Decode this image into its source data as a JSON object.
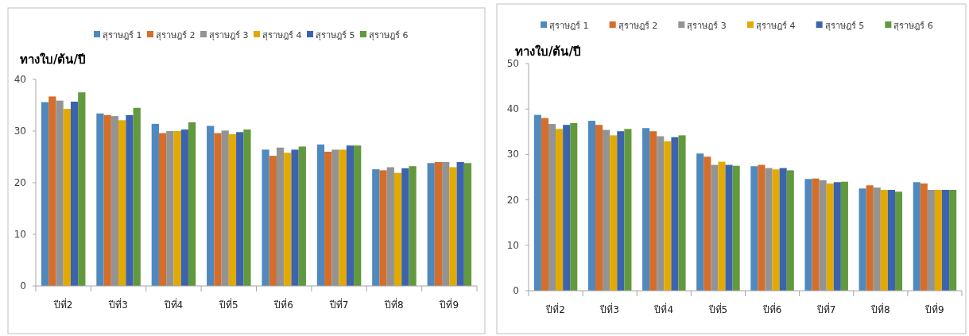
{
  "chart_data": [
    {
      "type": "bar",
      "ylabel": "ทางใบ/ต้น/ปี",
      "categories": [
        "ปีที่2",
        "ปีที่3",
        "ปีที่4",
        "ปีที่5",
        "ปีที่6",
        "ปีที่7",
        "ปีที่8",
        "ปีที่9"
      ],
      "ylim": [
        0,
        40
      ],
      "yticks": [
        0,
        10,
        20,
        30,
        40
      ],
      "legend": "top",
      "series": [
        {
          "name": "สุราษฎร์ 1",
          "color": "#4f89bd",
          "values": [
            35.6,
            33.4,
            31.4,
            31.0,
            26.4,
            27.4,
            22.6,
            23.8
          ]
        },
        {
          "name": "สุราษฎร์ 2",
          "color": "#d56d2b",
          "values": [
            36.7,
            33.1,
            29.6,
            29.6,
            25.2,
            26.0,
            22.4,
            24.0
          ]
        },
        {
          "name": "สุราษฎร์ 3",
          "color": "#939393",
          "values": [
            35.9,
            32.9,
            30.0,
            30.1,
            26.8,
            26.4,
            23.0,
            24.0
          ]
        },
        {
          "name": "สุราษฎร์ 4",
          "color": "#e2aa00",
          "values": [
            34.3,
            32.1,
            30.0,
            29.4,
            25.8,
            26.4,
            21.9,
            23.0
          ]
        },
        {
          "name": "สุราษฎร์ 5",
          "color": "#3c63ae",
          "values": [
            35.7,
            33.1,
            30.3,
            29.8,
            26.4,
            27.2,
            22.8,
            24.0
          ]
        },
        {
          "name": "สุราษฎร์ 6",
          "color": "#62993e",
          "values": [
            37.5,
            34.5,
            31.7,
            30.3,
            27.0,
            27.2,
            23.2,
            23.8
          ]
        }
      ]
    },
    {
      "type": "bar",
      "ylabel": "ทางใบ/ต้น/ปี",
      "categories": [
        "ปีที่2",
        "ปีที่3",
        "ปีที่4",
        "ปีที่5",
        "ปีที่6",
        "ปีที่7",
        "ปีที่8",
        "ปีที่9"
      ],
      "ylim": [
        0,
        50
      ],
      "yticks": [
        0,
        10,
        20,
        30,
        40,
        50
      ],
      "legend": "top",
      "series": [
        {
          "name": "สุราษฎร์ 1",
          "color": "#4f89bd",
          "values": [
            38.7,
            37.4,
            35.8,
            30.2,
            27.4,
            24.6,
            22.5,
            23.9
          ]
        },
        {
          "name": "สุราษฎร์ 2",
          "color": "#d56d2b",
          "values": [
            38.0,
            36.5,
            35.1,
            29.5,
            27.7,
            24.7,
            23.2,
            23.6
          ]
        },
        {
          "name": "สุราษฎร์ 3",
          "color": "#939393",
          "values": [
            36.7,
            35.4,
            34.0,
            27.7,
            27.0,
            24.3,
            22.7,
            22.2
          ]
        },
        {
          "name": "สุราษฎร์ 4",
          "color": "#e2aa00",
          "values": [
            35.6,
            34.2,
            32.9,
            28.4,
            26.7,
            23.6,
            22.2,
            22.2
          ]
        },
        {
          "name": "สุราษฎร์ 5",
          "color": "#3c63ae",
          "values": [
            36.5,
            35.1,
            33.8,
            27.7,
            27.0,
            23.9,
            22.2,
            22.2
          ]
        },
        {
          "name": "สุราษฎร์ 6",
          "color": "#62993e",
          "values": [
            36.9,
            35.6,
            34.2,
            27.5,
            26.5,
            24.0,
            21.8,
            22.2
          ]
        }
      ]
    }
  ]
}
